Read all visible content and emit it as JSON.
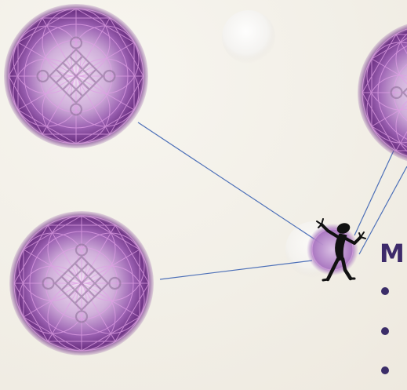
{
  "slide": {
    "heading_partial": "M",
    "bullet_count": 3
  },
  "theme": {
    "orb_color": "#7a3fa0",
    "orb_highlight": "#d08bdb",
    "connector_color": "#4d70b8",
    "text_color": "#3d2a6a",
    "background": "#f4f2ec"
  },
  "icons": {
    "hub": "dancing-stick-figure-icon",
    "orbs": "endless-knot-orb-icon"
  }
}
